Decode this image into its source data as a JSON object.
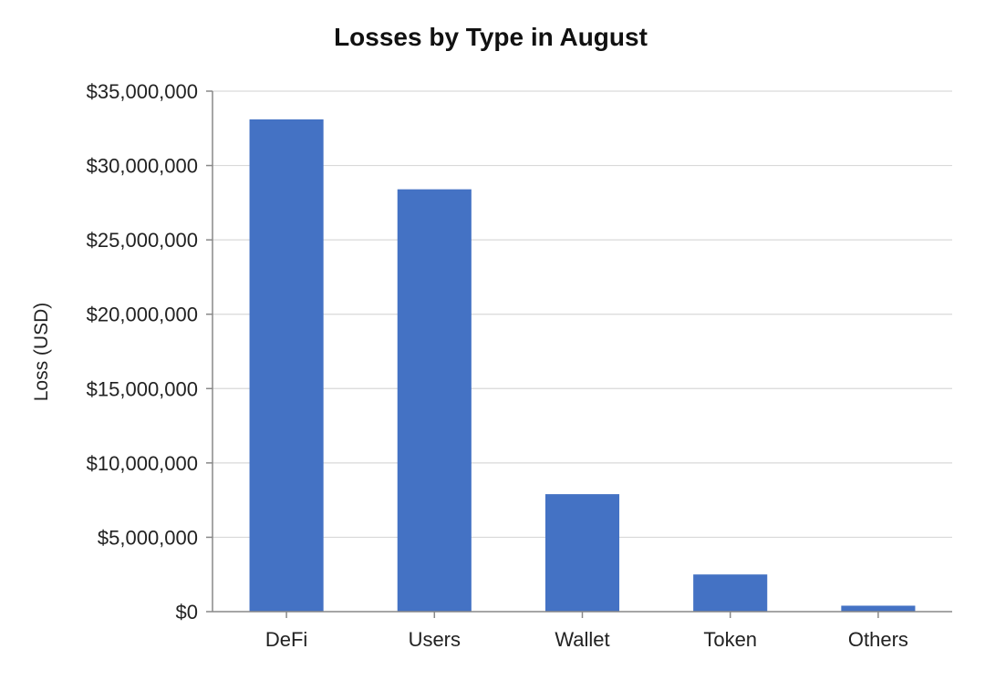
{
  "chart_data": {
    "type": "bar",
    "title": "Losses by Type in August",
    "xlabel": "",
    "ylabel": "Loss (USD)",
    "categories": [
      "DeFi",
      "Users",
      "Wallet",
      "Token",
      "Others"
    ],
    "values": [
      33100000,
      28400000,
      7900000,
      2500000,
      400000
    ],
    "ylim": [
      0,
      35000000
    ],
    "yticks": [
      0,
      5000000,
      10000000,
      15000000,
      20000000,
      25000000,
      30000000,
      35000000
    ],
    "ytick_labels": [
      "$0",
      "$5,000,000",
      "$10,000,000",
      "$15,000,000",
      "$20,000,000",
      "$25,000,000",
      "$30,000,000",
      "$35,000,000"
    ],
    "grid": true,
    "legend": "none",
    "bar_color": "#4472C4"
  }
}
